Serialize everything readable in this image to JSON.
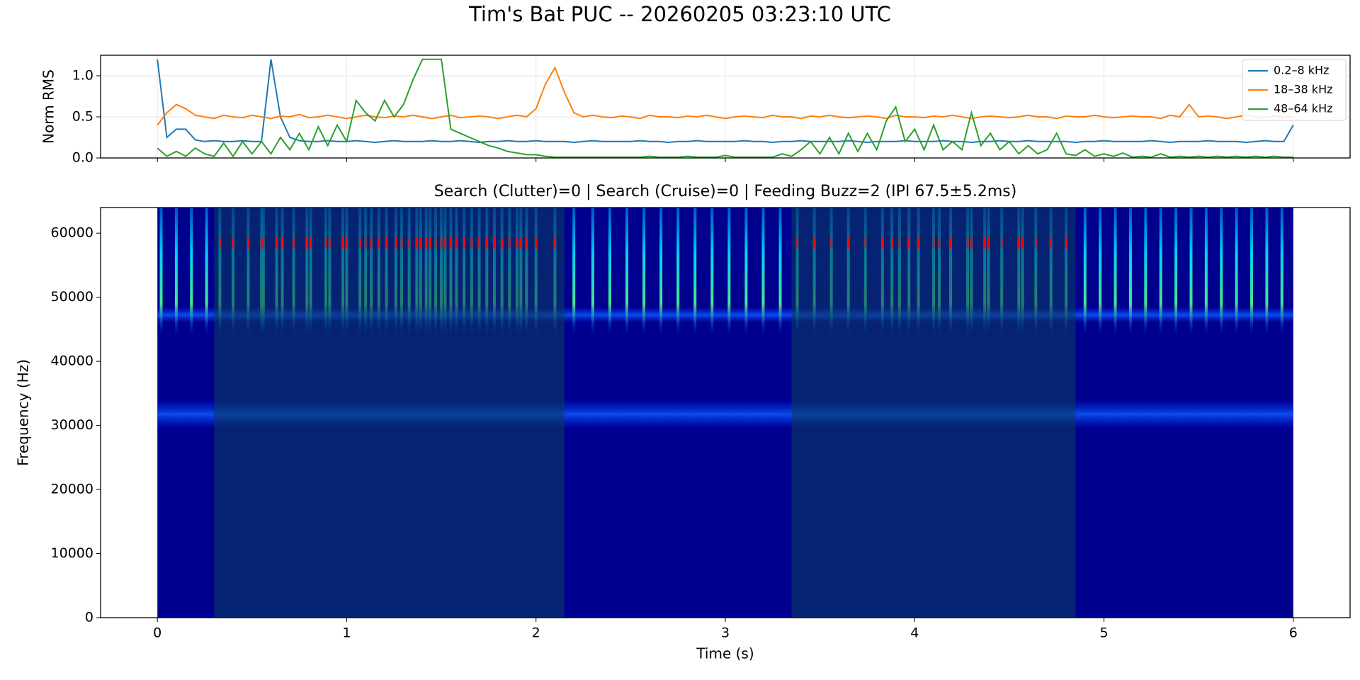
{
  "title": "Tim's Bat PUC -- 20260205 03:23:10 UTC",
  "chart_data": [
    {
      "type": "line",
      "ylabel": "Norm RMS",
      "xlim": [
        -0.3,
        6.3
      ],
      "ylim": [
        0,
        1.25
      ],
      "xticks": [
        0,
        1,
        2,
        3,
        4,
        5,
        6
      ],
      "yticks": [
        0.0,
        0.5,
        1.0
      ],
      "ytick_labels": [
        "0.0",
        "0.5",
        "1.0"
      ],
      "grid": true,
      "legend": "upper right",
      "x": [
        0,
        0.05,
        0.1,
        0.15,
        0.2,
        0.25,
        0.3,
        0.35,
        0.4,
        0.45,
        0.5,
        0.55,
        0.6,
        0.65,
        0.7,
        0.75,
        0.8,
        0.85,
        0.9,
        0.95,
        1,
        1.05,
        1.1,
        1.15,
        1.2,
        1.25,
        1.3,
        1.35,
        1.4,
        1.45,
        1.5,
        1.55,
        1.6,
        1.65,
        1.7,
        1.75,
        1.8,
        1.85,
        1.9,
        1.95,
        2,
        2.05,
        2.1,
        2.15,
        2.2,
        2.25,
        2.3,
        2.35,
        2.4,
        2.45,
        2.5,
        2.55,
        2.6,
        2.65,
        2.7,
        2.75,
        2.8,
        2.85,
        2.9,
        2.95,
        3,
        3.05,
        3.1,
        3.15,
        3.2,
        3.25,
        3.3,
        3.35,
        3.4,
        3.45,
        3.5,
        3.55,
        3.6,
        3.65,
        3.7,
        3.75,
        3.8,
        3.85,
        3.9,
        3.95,
        4,
        4.05,
        4.1,
        4.15,
        4.2,
        4.25,
        4.3,
        4.35,
        4.4,
        4.45,
        4.5,
        4.55,
        4.6,
        4.65,
        4.7,
        4.75,
        4.8,
        4.85,
        4.9,
        4.95,
        5,
        5.05,
        5.1,
        5.15,
        5.2,
        5.25,
        5.3,
        5.35,
        5.4,
        5.45,
        5.5,
        5.55,
        5.6,
        5.65,
        5.7,
        5.75,
        5.8,
        5.85,
        5.9,
        5.95,
        6
      ],
      "series": [
        {
          "name": "0.2–8 kHz",
          "color": "#1f77b4",
          "values": [
            1.2,
            0.25,
            0.35,
            0.35,
            0.22,
            0.2,
            0.21,
            0.2,
            0.2,
            0.21,
            0.2,
            0.2,
            1.2,
            0.5,
            0.25,
            0.21,
            0.2,
            0.2,
            0.21,
            0.2,
            0.2,
            0.21,
            0.2,
            0.19,
            0.2,
            0.21,
            0.2,
            0.2,
            0.2,
            0.21,
            0.2,
            0.2,
            0.21,
            0.2,
            0.19,
            0.2,
            0.2,
            0.21,
            0.2,
            0.2,
            0.21,
            0.2,
            0.2,
            0.2,
            0.19,
            0.2,
            0.21,
            0.2,
            0.2,
            0.2,
            0.2,
            0.21,
            0.2,
            0.2,
            0.19,
            0.2,
            0.2,
            0.21,
            0.2,
            0.2,
            0.2,
            0.2,
            0.21,
            0.2,
            0.2,
            0.19,
            0.2,
            0.2,
            0.21,
            0.2,
            0.2,
            0.2,
            0.2,
            0.21,
            0.2,
            0.19,
            0.2,
            0.2,
            0.2,
            0.21,
            0.2,
            0.2,
            0.2,
            0.21,
            0.2,
            0.2,
            0.19,
            0.2,
            0.2,
            0.21,
            0.2,
            0.2,
            0.21,
            0.2,
            0.2,
            0.2,
            0.2,
            0.19,
            0.2,
            0.2,
            0.21,
            0.2,
            0.2,
            0.2,
            0.2,
            0.21,
            0.2,
            0.19,
            0.2,
            0.2,
            0.2,
            0.21,
            0.2,
            0.2,
            0.2,
            0.19,
            0.2,
            0.21,
            0.2,
            0.2,
            0.4
          ]
        },
        {
          "name": "18–38 kHz",
          "color": "#ff7f0e",
          "values": [
            0.4,
            0.55,
            0.65,
            0.6,
            0.52,
            0.5,
            0.48,
            0.52,
            0.5,
            0.49,
            0.52,
            0.5,
            0.48,
            0.51,
            0.5,
            0.53,
            0.49,
            0.5,
            0.52,
            0.5,
            0.48,
            0.5,
            0.52,
            0.5,
            0.49,
            0.51,
            0.5,
            0.52,
            0.5,
            0.48,
            0.5,
            0.52,
            0.49,
            0.5,
            0.51,
            0.5,
            0.48,
            0.5,
            0.52,
            0.5,
            0.6,
            0.9,
            1.1,
            0.8,
            0.55,
            0.5,
            0.52,
            0.5,
            0.49,
            0.51,
            0.5,
            0.48,
            0.52,
            0.5,
            0.5,
            0.49,
            0.51,
            0.5,
            0.52,
            0.5,
            0.48,
            0.5,
            0.51,
            0.5,
            0.49,
            0.52,
            0.5,
            0.5,
            0.48,
            0.51,
            0.5,
            0.52,
            0.5,
            0.49,
            0.5,
            0.51,
            0.5,
            0.48,
            0.52,
            0.5,
            0.5,
            0.49,
            0.51,
            0.5,
            0.52,
            0.5,
            0.48,
            0.5,
            0.51,
            0.5,
            0.49,
            0.5,
            0.52,
            0.5,
            0.5,
            0.48,
            0.51,
            0.5,
            0.5,
            0.52,
            0.5,
            0.49,
            0.5,
            0.51,
            0.5,
            0.5,
            0.48,
            0.52,
            0.5,
            0.65,
            0.5,
            0.51,
            0.5,
            0.48,
            0.5,
            0.52,
            0.5,
            0.49,
            0.51,
            0.5,
            0.5
          ]
        },
        {
          "name": "48–64 kHz",
          "color": "#2ca02c",
          "values": [
            0.12,
            0.02,
            0.08,
            0.02,
            0.12,
            0.05,
            0.02,
            0.18,
            0.02,
            0.2,
            0.05,
            0.2,
            0.05,
            0.25,
            0.1,
            0.3,
            0.1,
            0.38,
            0.15,
            0.4,
            0.2,
            0.7,
            0.55,
            0.45,
            0.7,
            0.5,
            0.65,
            0.95,
            1.2,
            1.2,
            1.2,
            0.35,
            0.3,
            0.25,
            0.2,
            0.15,
            0.12,
            0.08,
            0.06,
            0.04,
            0.04,
            0.02,
            0.01,
            0.01,
            0.01,
            0.01,
            0.01,
            0.01,
            0.01,
            0.01,
            0.01,
            0.01,
            0.02,
            0.01,
            0.01,
            0.01,
            0.02,
            0.01,
            0.01,
            0.01,
            0.03,
            0.01,
            0.01,
            0.01,
            0.01,
            0.01,
            0.05,
            0.02,
            0.1,
            0.2,
            0.05,
            0.25,
            0.05,
            0.3,
            0.08,
            0.3,
            0.1,
            0.45,
            0.62,
            0.2,
            0.35,
            0.1,
            0.4,
            0.1,
            0.2,
            0.1,
            0.55,
            0.15,
            0.3,
            0.1,
            0.2,
            0.05,
            0.15,
            0.05,
            0.1,
            0.3,
            0.05,
            0.03,
            0.1,
            0.02,
            0.05,
            0.02,
            0.06,
            0.01,
            0.02,
            0.01,
            0.05,
            0.01,
            0.02,
            0.01,
            0.02,
            0.01,
            0.02,
            0.01,
            0.02,
            0.01,
            0.02,
            0.01,
            0.02,
            0.01,
            0.01
          ]
        }
      ]
    },
    {
      "type": "spectrogram",
      "title": "Search (Clutter)=0 | Search (Cruise)=0 | Feeding Buzz=2 (IPI 67.5±5.2ms)",
      "xlabel": "Time (s)",
      "ylabel": "Frequency (Hz)",
      "xlim": [
        -0.3,
        6.3
      ],
      "ylim": [
        0,
        64000
      ],
      "extent": [
        0,
        6
      ],
      "xticks": [
        0,
        1,
        2,
        3,
        4,
        5,
        6
      ],
      "yticks": [
        0,
        10000,
        20000,
        30000,
        40000,
        50000,
        60000
      ],
      "buzz_regions": [
        [
          0.3,
          2.15
        ],
        [
          3.35,
          4.85
        ]
      ],
      "detection_freq": 58500,
      "detection_color": "#ff0000",
      "detections": [
        0.33,
        0.4,
        0.48,
        0.55,
        0.56,
        0.63,
        0.66,
        0.72,
        0.79,
        0.81,
        0.89,
        0.91,
        0.98,
        1.0,
        1.07,
        1.1,
        1.13,
        1.17,
        1.21,
        1.26,
        1.29,
        1.33,
        1.37,
        1.39,
        1.42,
        1.44,
        1.47,
        1.5,
        1.52,
        1.55,
        1.58,
        1.62,
        1.66,
        1.7,
        1.74,
        1.78,
        1.82,
        1.86,
        1.9,
        1.92,
        1.95,
        2.0,
        2.1,
        3.38,
        3.47,
        3.56,
        3.65,
        3.74,
        3.83,
        3.88,
        3.92,
        3.97,
        4.02,
        4.1,
        4.13,
        4.19,
        4.28,
        4.3,
        4.37,
        4.39,
        4.46,
        4.55,
        4.57,
        4.64,
        4.72,
        4.8
      ],
      "pulses": [
        0.02,
        0.1,
        0.18,
        0.26,
        2.2,
        2.3,
        2.39,
        2.48,
        2.57,
        2.66,
        2.75,
        2.84,
        2.93,
        3.02,
        3.11,
        3.2,
        3.29,
        4.9,
        4.98,
        5.06,
        5.14,
        5.22,
        5.3,
        5.38,
        5.46,
        5.54,
        5.62,
        5.7,
        5.78,
        5.86,
        5.94
      ]
    }
  ]
}
